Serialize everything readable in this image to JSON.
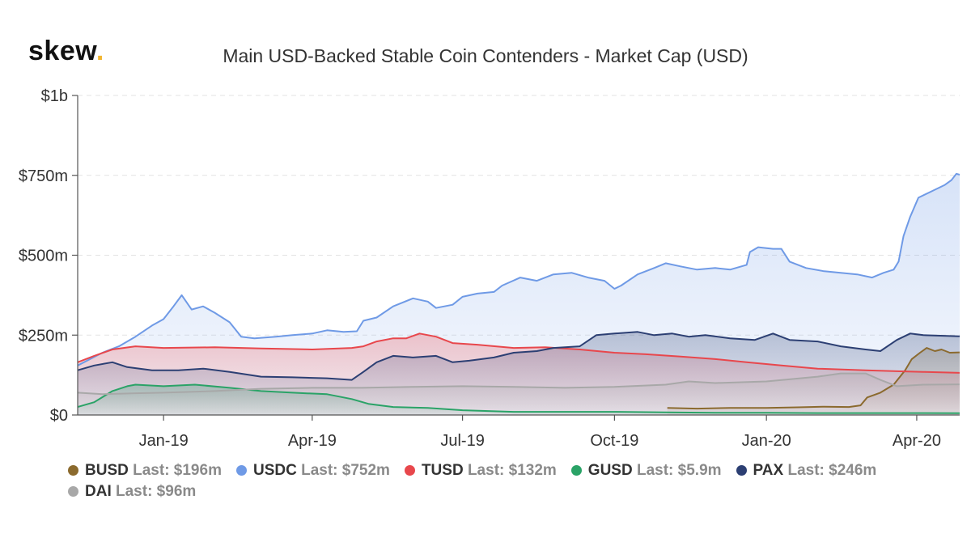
{
  "logo": {
    "text": "skew",
    "dot": "."
  },
  "chart_data": {
    "type": "area",
    "title": "Main USD-Backed Stable Coin Contenders - Market Cap (USD)",
    "xlabel": "",
    "ylabel": "",
    "x_range": [
      "2018-11-10",
      "2020-04-27"
    ],
    "ylim": [
      0,
      1000
    ],
    "y_unit": "$m",
    "y_ticks": [
      {
        "value": 0,
        "label": "$0"
      },
      {
        "value": 250,
        "label": "$250m"
      },
      {
        "value": 500,
        "label": "$500m"
      },
      {
        "value": 750,
        "label": "$750m"
      },
      {
        "value": 1000,
        "label": "$1b"
      }
    ],
    "x_ticks": [
      {
        "date": "2019-01-01",
        "label": "Jan-19"
      },
      {
        "date": "2019-04-01",
        "label": "Apr-19"
      },
      {
        "date": "2019-07-01",
        "label": "Jul-19"
      },
      {
        "date": "2019-10-01",
        "label": "Oct-19"
      },
      {
        "date": "2020-01-01",
        "label": "Jan-20"
      },
      {
        "date": "2020-04-01",
        "label": "Apr-20"
      }
    ],
    "grid": "horizontal dashed",
    "legend_position": "bottom",
    "series": [
      {
        "name": "BUSD",
        "last": "Last: $196m",
        "color": "#8b6a2e",
        "points": [
          [
            "2019-11-02",
            22
          ],
          [
            "2019-11-20",
            20
          ],
          [
            "2019-12-10",
            22
          ],
          [
            "2020-01-01",
            22
          ],
          [
            "2020-01-20",
            24
          ],
          [
            "2020-02-05",
            26
          ],
          [
            "2020-02-20",
            25
          ],
          [
            "2020-02-27",
            30
          ],
          [
            "2020-03-02",
            55
          ],
          [
            "2020-03-10",
            70
          ],
          [
            "2020-03-18",
            95
          ],
          [
            "2020-03-25",
            140
          ],
          [
            "2020-03-29",
            175
          ],
          [
            "2020-04-03",
            195
          ],
          [
            "2020-04-07",
            210
          ],
          [
            "2020-04-12",
            200
          ],
          [
            "2020-04-16",
            205
          ],
          [
            "2020-04-21",
            195
          ],
          [
            "2020-04-27",
            196
          ]
        ]
      },
      {
        "name": "USDC",
        "last": "Last: $752m",
        "color": "#6f9ae6",
        "points": [
          [
            "2018-11-10",
            155
          ],
          [
            "2018-11-25",
            195
          ],
          [
            "2018-12-05",
            215
          ],
          [
            "2018-12-15",
            245
          ],
          [
            "2018-12-25",
            280
          ],
          [
            "2019-01-01",
            300
          ],
          [
            "2019-01-07",
            340
          ],
          [
            "2019-01-12",
            375
          ],
          [
            "2019-01-18",
            330
          ],
          [
            "2019-01-25",
            340
          ],
          [
            "2019-02-01",
            320
          ],
          [
            "2019-02-10",
            290
          ],
          [
            "2019-02-17",
            245
          ],
          [
            "2019-02-25",
            240
          ],
          [
            "2019-03-10",
            245
          ],
          [
            "2019-03-20",
            250
          ],
          [
            "2019-04-01",
            255
          ],
          [
            "2019-04-10",
            265
          ],
          [
            "2019-04-20",
            260
          ],
          [
            "2019-04-28",
            262
          ],
          [
            "2019-05-02",
            295
          ],
          [
            "2019-05-10",
            305
          ],
          [
            "2019-05-20",
            340
          ],
          [
            "2019-06-01",
            365
          ],
          [
            "2019-06-10",
            355
          ],
          [
            "2019-06-15",
            335
          ],
          [
            "2019-06-25",
            345
          ],
          [
            "2019-07-01",
            370
          ],
          [
            "2019-07-10",
            380
          ],
          [
            "2019-07-20",
            385
          ],
          [
            "2019-07-25",
            405
          ],
          [
            "2019-08-05",
            430
          ],
          [
            "2019-08-15",
            420
          ],
          [
            "2019-08-25",
            440
          ],
          [
            "2019-09-05",
            445
          ],
          [
            "2019-09-15",
            430
          ],
          [
            "2019-09-25",
            420
          ],
          [
            "2019-10-01",
            395
          ],
          [
            "2019-10-05",
            405
          ],
          [
            "2019-10-15",
            440
          ],
          [
            "2019-10-25",
            460
          ],
          [
            "2019-11-01",
            475
          ],
          [
            "2019-11-10",
            465
          ],
          [
            "2019-11-20",
            455
          ],
          [
            "2019-12-01",
            460
          ],
          [
            "2019-12-10",
            455
          ],
          [
            "2019-12-20",
            470
          ],
          [
            "2019-12-22",
            510
          ],
          [
            "2019-12-27",
            525
          ],
          [
            "2020-01-05",
            520
          ],
          [
            "2020-01-10",
            520
          ],
          [
            "2020-01-15",
            480
          ],
          [
            "2020-01-25",
            460
          ],
          [
            "2020-02-05",
            450
          ],
          [
            "2020-02-15",
            445
          ],
          [
            "2020-02-25",
            440
          ],
          [
            "2020-03-05",
            430
          ],
          [
            "2020-03-12",
            445
          ],
          [
            "2020-03-18",
            455
          ],
          [
            "2020-03-21",
            480
          ],
          [
            "2020-03-24",
            560
          ],
          [
            "2020-03-28",
            620
          ],
          [
            "2020-04-02",
            680
          ],
          [
            "2020-04-10",
            700
          ],
          [
            "2020-04-18",
            720
          ],
          [
            "2020-04-22",
            735
          ],
          [
            "2020-04-25",
            755
          ],
          [
            "2020-04-27",
            752
          ]
        ]
      },
      {
        "name": "TUSD",
        "last": "Last: $132m",
        "color": "#e8474c",
        "points": [
          [
            "2018-11-10",
            165
          ],
          [
            "2018-11-20",
            185
          ],
          [
            "2018-12-01",
            205
          ],
          [
            "2018-12-15",
            215
          ],
          [
            "2019-01-01",
            210
          ],
          [
            "2019-02-01",
            212
          ],
          [
            "2019-03-01",
            208
          ],
          [
            "2019-04-01",
            205
          ],
          [
            "2019-04-25",
            210
          ],
          [
            "2019-05-02",
            215
          ],
          [
            "2019-05-10",
            230
          ],
          [
            "2019-05-20",
            240
          ],
          [
            "2019-05-28",
            240
          ],
          [
            "2019-06-05",
            255
          ],
          [
            "2019-06-15",
            245
          ],
          [
            "2019-06-25",
            225
          ],
          [
            "2019-07-10",
            220
          ],
          [
            "2019-08-01",
            210
          ],
          [
            "2019-08-20",
            212
          ],
          [
            "2019-09-10",
            205
          ],
          [
            "2019-10-01",
            195
          ],
          [
            "2019-10-20",
            190
          ],
          [
            "2019-11-10",
            183
          ],
          [
            "2019-12-01",
            175
          ],
          [
            "2019-12-20",
            165
          ],
          [
            "2020-01-10",
            155
          ],
          [
            "2020-02-01",
            145
          ],
          [
            "2020-03-01",
            140
          ],
          [
            "2020-03-20",
            137
          ],
          [
            "2020-04-05",
            135
          ],
          [
            "2020-04-27",
            132
          ]
        ]
      },
      {
        "name": "GUSD",
        "last": "Last: $5.9m",
        "color": "#2aa367",
        "points": [
          [
            "2018-11-10",
            25
          ],
          [
            "2018-11-20",
            40
          ],
          [
            "2018-12-01",
            75
          ],
          [
            "2018-12-10",
            90
          ],
          [
            "2018-12-15",
            95
          ],
          [
            "2019-01-01",
            90
          ],
          [
            "2019-01-20",
            95
          ],
          [
            "2019-02-10",
            85
          ],
          [
            "2019-03-01",
            75
          ],
          [
            "2019-03-20",
            70
          ],
          [
            "2019-04-10",
            65
          ],
          [
            "2019-04-25",
            50
          ],
          [
            "2019-05-05",
            35
          ],
          [
            "2019-05-20",
            25
          ],
          [
            "2019-06-10",
            22
          ],
          [
            "2019-07-01",
            15
          ],
          [
            "2019-08-01",
            10
          ],
          [
            "2019-09-01",
            10
          ],
          [
            "2019-10-01",
            10
          ],
          [
            "2019-11-01",
            8
          ],
          [
            "2019-12-01",
            7
          ],
          [
            "2020-01-01",
            7
          ],
          [
            "2020-02-01",
            6
          ],
          [
            "2020-03-01",
            6
          ],
          [
            "2020-04-01",
            6
          ],
          [
            "2020-04-27",
            5.9
          ]
        ]
      },
      {
        "name": "PAX",
        "last": "Last: $246m",
        "color": "#2c3f73",
        "points": [
          [
            "2018-11-10",
            140
          ],
          [
            "2018-11-20",
            155
          ],
          [
            "2018-12-01",
            165
          ],
          [
            "2018-12-10",
            150
          ],
          [
            "2018-12-25",
            140
          ],
          [
            "2019-01-10",
            140
          ],
          [
            "2019-01-25",
            145
          ],
          [
            "2019-02-10",
            135
          ],
          [
            "2019-03-01",
            120
          ],
          [
            "2019-03-20",
            118
          ],
          [
            "2019-04-10",
            115
          ],
          [
            "2019-04-25",
            110
          ],
          [
            "2019-05-02",
            135
          ],
          [
            "2019-05-10",
            165
          ],
          [
            "2019-05-20",
            185
          ],
          [
            "2019-06-01",
            180
          ],
          [
            "2019-06-15",
            185
          ],
          [
            "2019-06-25",
            165
          ],
          [
            "2019-07-05",
            170
          ],
          [
            "2019-07-20",
            180
          ],
          [
            "2019-08-01",
            195
          ],
          [
            "2019-08-15",
            200
          ],
          [
            "2019-08-25",
            210
          ],
          [
            "2019-09-10",
            215
          ],
          [
            "2019-09-20",
            250
          ],
          [
            "2019-10-01",
            255
          ],
          [
            "2019-10-15",
            260
          ],
          [
            "2019-10-25",
            250
          ],
          [
            "2019-11-05",
            255
          ],
          [
            "2019-11-15",
            245
          ],
          [
            "2019-11-25",
            250
          ],
          [
            "2019-12-10",
            240
          ],
          [
            "2019-12-25",
            235
          ],
          [
            "2020-01-05",
            255
          ],
          [
            "2020-01-15",
            235
          ],
          [
            "2020-02-01",
            230
          ],
          [
            "2020-02-15",
            215
          ],
          [
            "2020-03-01",
            205
          ],
          [
            "2020-03-10",
            200
          ],
          [
            "2020-03-20",
            235
          ],
          [
            "2020-03-28",
            255
          ],
          [
            "2020-04-05",
            250
          ],
          [
            "2020-04-27",
            246
          ]
        ]
      },
      {
        "name": "DAI",
        "last": "Last: $96m",
        "color": "#a8a8a8",
        "points": [
          [
            "2018-11-10",
            70
          ],
          [
            "2018-11-25",
            65
          ],
          [
            "2018-12-15",
            68
          ],
          [
            "2019-01-01",
            70
          ],
          [
            "2019-02-01",
            75
          ],
          [
            "2019-03-01",
            82
          ],
          [
            "2019-04-01",
            85
          ],
          [
            "2019-05-01",
            85
          ],
          [
            "2019-06-01",
            88
          ],
          [
            "2019-07-01",
            90
          ],
          [
            "2019-08-01",
            88
          ],
          [
            "2019-09-01",
            85
          ],
          [
            "2019-10-01",
            88
          ],
          [
            "2019-11-01",
            95
          ],
          [
            "2019-11-15",
            105
          ],
          [
            "2019-12-01",
            100
          ],
          [
            "2020-01-01",
            105
          ],
          [
            "2020-02-01",
            120
          ],
          [
            "2020-02-15",
            130
          ],
          [
            "2020-03-01",
            130
          ],
          [
            "2020-03-10",
            110
          ],
          [
            "2020-03-20",
            90
          ],
          [
            "2020-04-05",
            95
          ],
          [
            "2020-04-27",
            96
          ]
        ]
      }
    ]
  }
}
